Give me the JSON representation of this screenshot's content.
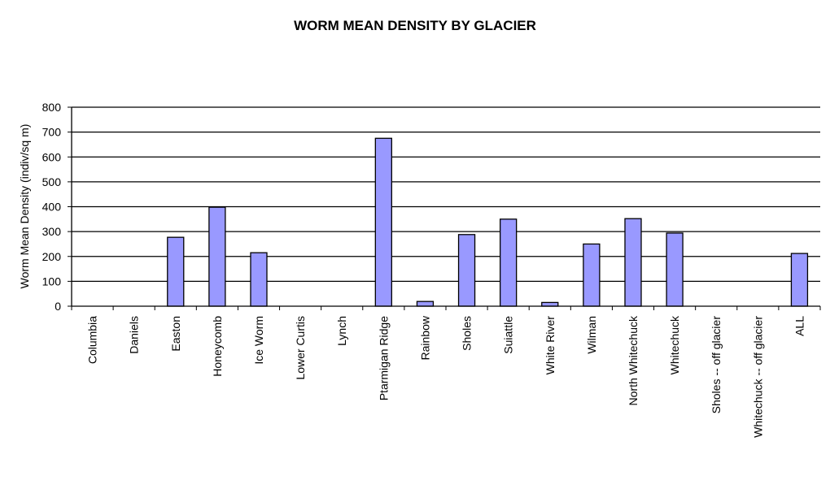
{
  "chart_data": {
    "type": "bar",
    "title": "WORM MEAN DENSITY BY GLACIER",
    "xlabel": "",
    "ylabel": "Worm Mean Density (indiv/sq m)",
    "ylim": [
      0,
      800
    ],
    "yticks": [
      0,
      100,
      200,
      300,
      400,
      500,
      600,
      700,
      800
    ],
    "grid": true,
    "legend": "none",
    "bar_color": "#9999ff",
    "categories": [
      "Columbia",
      "Daniels",
      "Easton",
      "Honeycomb",
      "Ice Worm",
      "Lower Curtis",
      "Lynch",
      "Ptarmigan Ridge",
      "Rainbow",
      "Sholes",
      "Suiattle",
      "White River",
      "Wilman",
      "North Whitechuck",
      "Whitechuck",
      "Sholes -- off glacier",
      "Whitechuck -- off glacier",
      "ALL"
    ],
    "values": [
      0,
      0,
      277,
      398,
      215,
      0,
      0,
      675,
      19,
      288,
      350,
      15,
      250,
      352,
      294,
      0,
      0,
      212
    ]
  }
}
